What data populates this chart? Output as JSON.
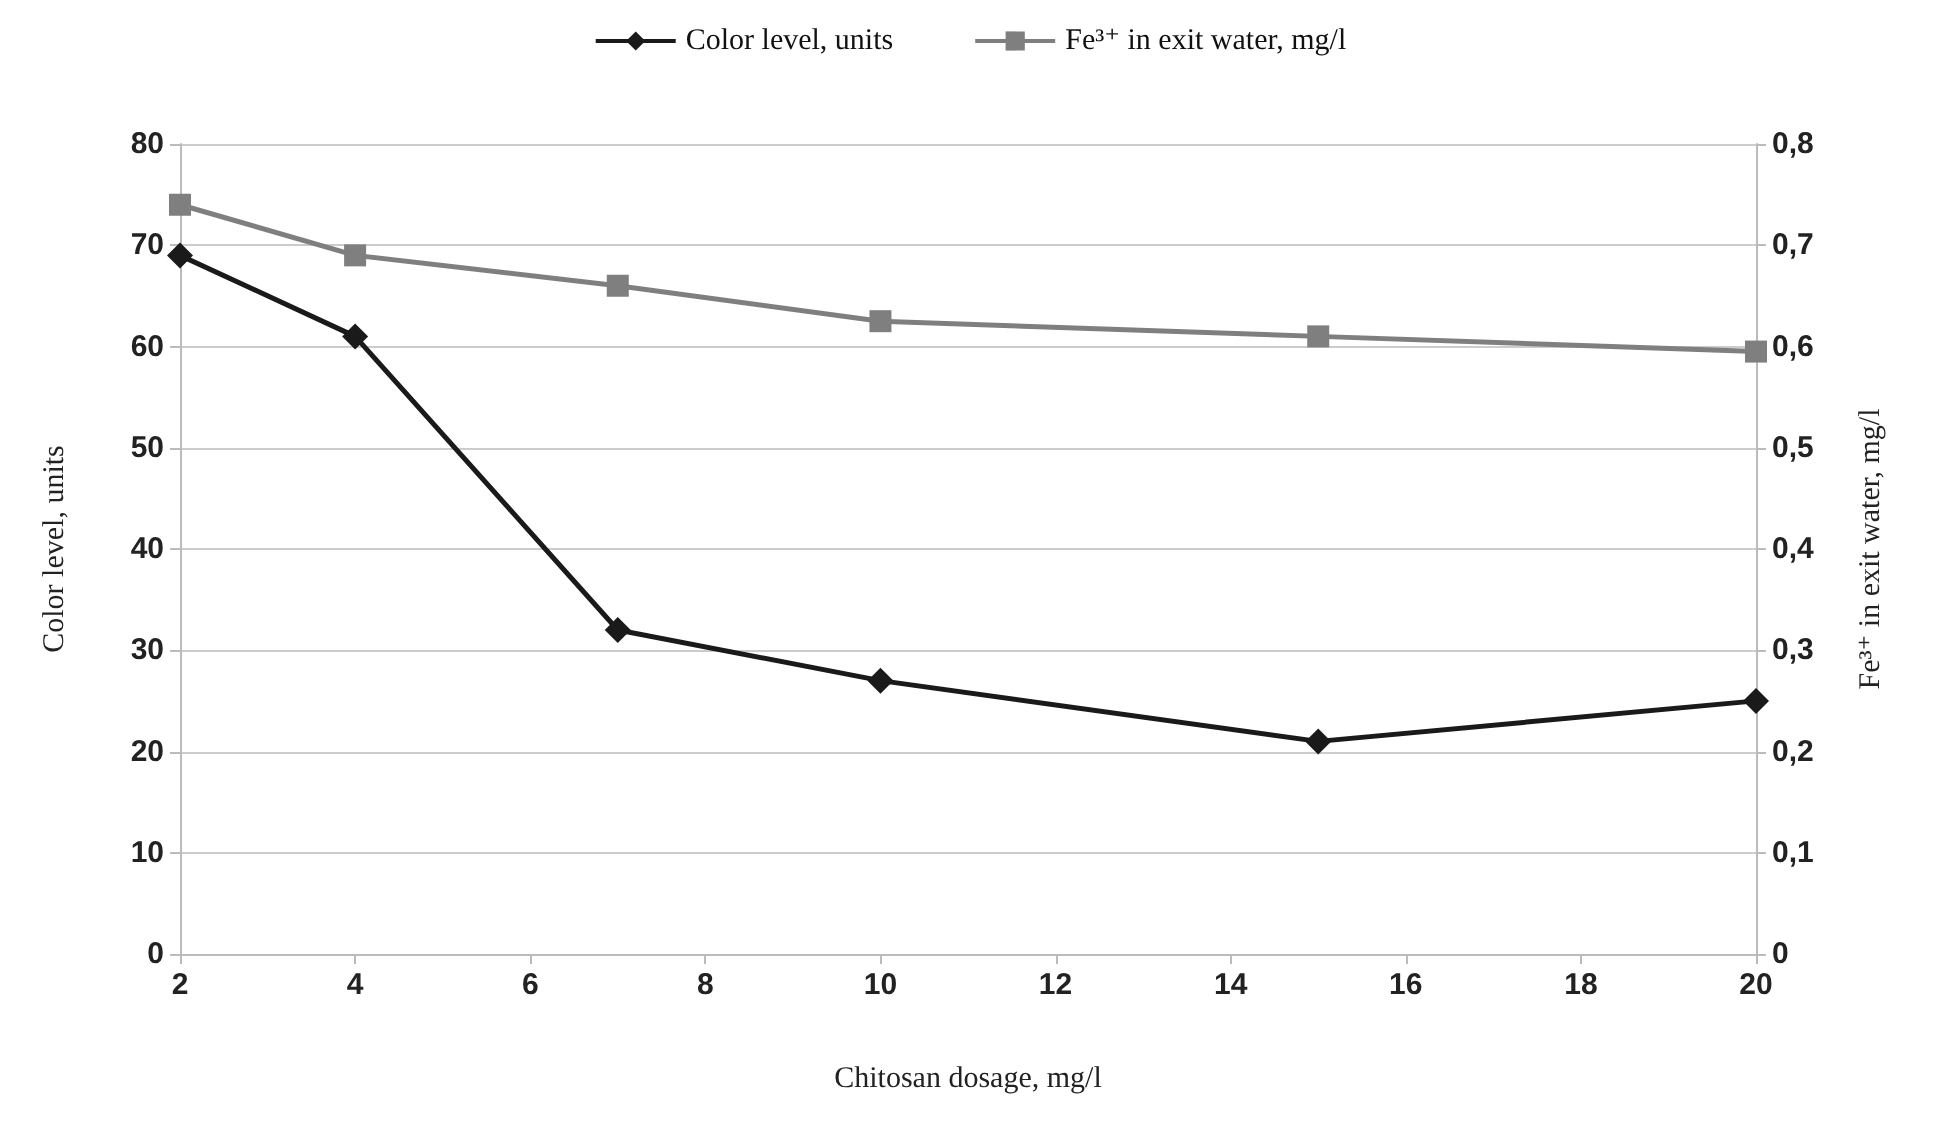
{
  "chart_data": {
    "type": "line",
    "xlabel": "Chitosan dosage, mg/l",
    "ylabel": "Color level, units",
    "y2label": "Fe³⁺ in exit water, mg/l",
    "x": [
      2,
      4,
      7,
      10,
      15,
      20
    ],
    "series": [
      {
        "name": "Color level, units",
        "color": "#1a1a1a",
        "marker": "diamond",
        "values": [
          69,
          61,
          32,
          27,
          21,
          25
        ]
      },
      {
        "name": "Fe³⁺ in exit water, mg/l",
        "color": "#7f7f7f",
        "marker": "square",
        "axis": "y2",
        "values": [
          0.74,
          0.69,
          0.66,
          0.625,
          0.61,
          0.595
        ]
      }
    ],
    "xlim": [
      2,
      20
    ],
    "xticks": [
      2,
      4,
      6,
      8,
      10,
      12,
      14,
      16,
      18,
      20
    ],
    "ylim": [
      0,
      80
    ],
    "yticks": [
      0,
      10,
      20,
      30,
      40,
      50,
      60,
      70,
      80
    ],
    "y2lim": [
      0,
      0.8
    ],
    "y2ticks": [
      0,
      {
        "value": 0.1,
        "label": "0,1"
      },
      {
        "value": 0.2,
        "label": "0,2"
      },
      {
        "value": 0.3,
        "label": "0,3"
      },
      {
        "value": 0.4,
        "label": "0,4"
      },
      {
        "value": 0.5,
        "label": "0,5"
      },
      {
        "value": 0.6,
        "label": "0,6"
      },
      {
        "value": 0.7,
        "label": "0,7"
      },
      {
        "value": 0.8,
        "label": "0,8"
      }
    ],
    "grid": "y",
    "legend": "top",
    "line_style": "solid"
  }
}
